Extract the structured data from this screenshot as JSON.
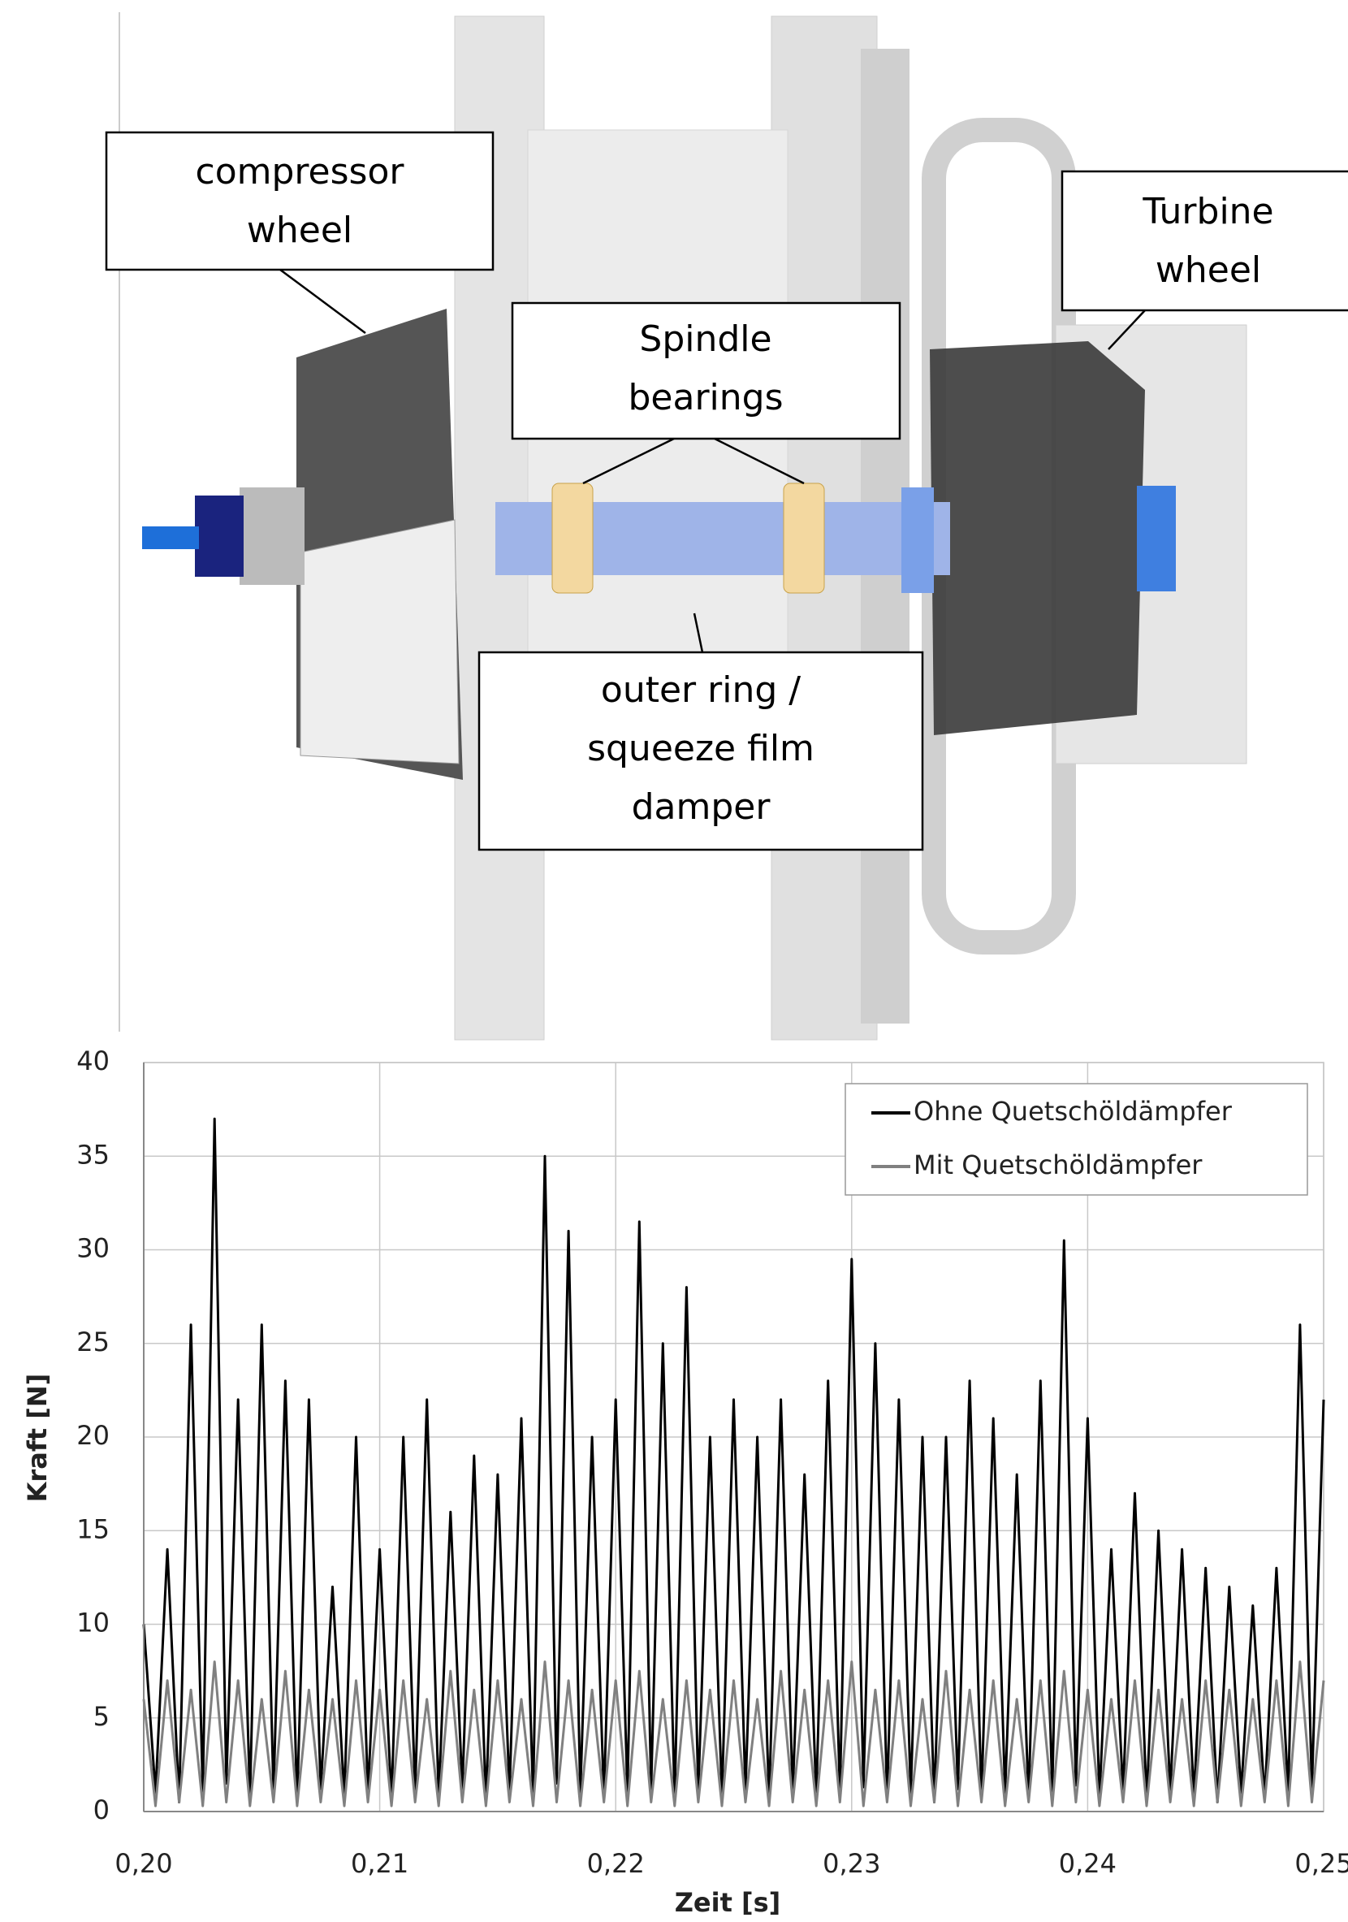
{
  "diagram": {
    "labels": [
      "compressor wheel",
      "Turbine wheel",
      "Spindle bearings",
      "outer ring / squeeze film damper"
    ]
  },
  "chart_data": {
    "type": "line",
    "x_label": "Zeit [s]",
    "y_label": "Kraft [N]",
    "x": [
      0.2,
      0.2005,
      0.201,
      0.2015,
      0.202,
      0.2025,
      0.203,
      0.2035,
      0.204,
      0.2045,
      0.205,
      0.2055,
      0.206,
      0.2065,
      0.207,
      0.2075,
      0.208,
      0.2085,
      0.209,
      0.2095,
      0.21,
      0.2105,
      0.211,
      0.2115,
      0.212,
      0.2125,
      0.213,
      0.2135,
      0.214,
      0.2145,
      0.215,
      0.2155,
      0.216,
      0.2165,
      0.217,
      0.2175,
      0.218,
      0.2185,
      0.219,
      0.2195,
      0.22,
      0.2205,
      0.221,
      0.2215,
      0.222,
      0.2225,
      0.223,
      0.2235,
      0.224,
      0.2245,
      0.225,
      0.2255,
      0.226,
      0.2265,
      0.227,
      0.2275,
      0.228,
      0.2285,
      0.229,
      0.2295,
      0.23,
      0.2305,
      0.231,
      0.2315,
      0.232,
      0.2325,
      0.233,
      0.2335,
      0.234,
      0.2345,
      0.235,
      0.2355,
      0.236,
      0.2365,
      0.237,
      0.2375,
      0.238,
      0.2385,
      0.239,
      0.2395,
      0.24,
      0.2405,
      0.241,
      0.2415,
      0.242,
      0.2425,
      0.243,
      0.2435,
      0.244,
      0.2445,
      0.245,
      0.2455,
      0.246,
      0.2465,
      0.247,
      0.2475,
      0.248,
      0.2485,
      0.249,
      0.2495,
      0.25
    ],
    "series": [
      {
        "name": "Ohne Quetschöldämpfer",
        "color": "#000000",
        "values": [
          10,
          1,
          14,
          0.5,
          26,
          1,
          37,
          1.5,
          22,
          0.8,
          26,
          1,
          23,
          0.5,
          22,
          1.2,
          12,
          0.8,
          20,
          1,
          14,
          0.6,
          20,
          1,
          22,
          0.8,
          16,
          1.2,
          19,
          0.5,
          18,
          1,
          21,
          0.8,
          35,
          1.5,
          31,
          1,
          20,
          0.7,
          22,
          1,
          31.5,
          1.2,
          25,
          0.6,
          28,
          1,
          20,
          0.8,
          22,
          1.1,
          20,
          0.6,
          22,
          1,
          18,
          0.8,
          23,
          1,
          29.5,
          1.3,
          25,
          0.7,
          22,
          1,
          20,
          0.5,
          20,
          1.2,
          23,
          0.8,
          21,
          1,
          18,
          0.6,
          23,
          1,
          30.5,
          1.4,
          21,
          0.8,
          14,
          1,
          17,
          0.6,
          15,
          1.1,
          14,
          0.8,
          13,
          0.5,
          12,
          1,
          11,
          0.7,
          13,
          1,
          26,
          1.2,
          22
        ]
      },
      {
        "name": "Mit Quetschöldämpfer",
        "color": "#808080",
        "values": [
          6,
          0.3,
          7,
          0.5,
          6.5,
          0.3,
          8,
          0.5,
          7,
          0.3,
          6,
          0.5,
          7.5,
          0.3,
          6.5,
          0.5,
          6,
          0.3,
          7,
          0.5,
          6.5,
          0.3,
          7,
          0.5,
          6,
          0.3,
          7.5,
          0.5,
          6.5,
          0.3,
          7,
          0.5,
          6,
          0.3,
          8,
          0.5,
          7,
          0.3,
          6.5,
          0.5,
          7,
          0.3,
          7.5,
          0.5,
          6,
          0.3,
          7,
          0.5,
          6.5,
          0.3,
          7,
          0.5,
          6,
          0.3,
          7.5,
          0.5,
          6.5,
          0.3,
          7,
          0.5,
          8,
          0.3,
          6.5,
          0.5,
          7,
          0.3,
          6,
          0.5,
          7.5,
          0.3,
          6.5,
          0.5,
          7,
          0.3,
          6,
          0.5,
          7,
          0.3,
          7.5,
          0.5,
          6.5,
          0.3,
          6,
          0.5,
          7,
          0.3,
          6.5,
          0.5,
          6,
          0.3,
          7,
          0.5,
          6.5,
          0.3,
          6,
          0.5,
          7,
          0.3,
          8,
          0.5,
          7
        ]
      }
    ],
    "xlim": [
      0.2,
      0.25
    ],
    "ylim": [
      0,
      40
    ],
    "xticks": [
      {
        "value": 0.2,
        "label": "0,20"
      },
      {
        "value": 0.21,
        "label": "0,21"
      },
      {
        "value": 0.22,
        "label": "0,22"
      },
      {
        "value": 0.23,
        "label": "0,23"
      },
      {
        "value": 0.24,
        "label": "0,24"
      },
      {
        "value": 0.25,
        "label": "0,25"
      }
    ],
    "yticks": [
      0,
      5,
      10,
      15,
      20,
      25,
      30,
      35,
      40
    ],
    "grid": true,
    "legend": "top-right"
  }
}
